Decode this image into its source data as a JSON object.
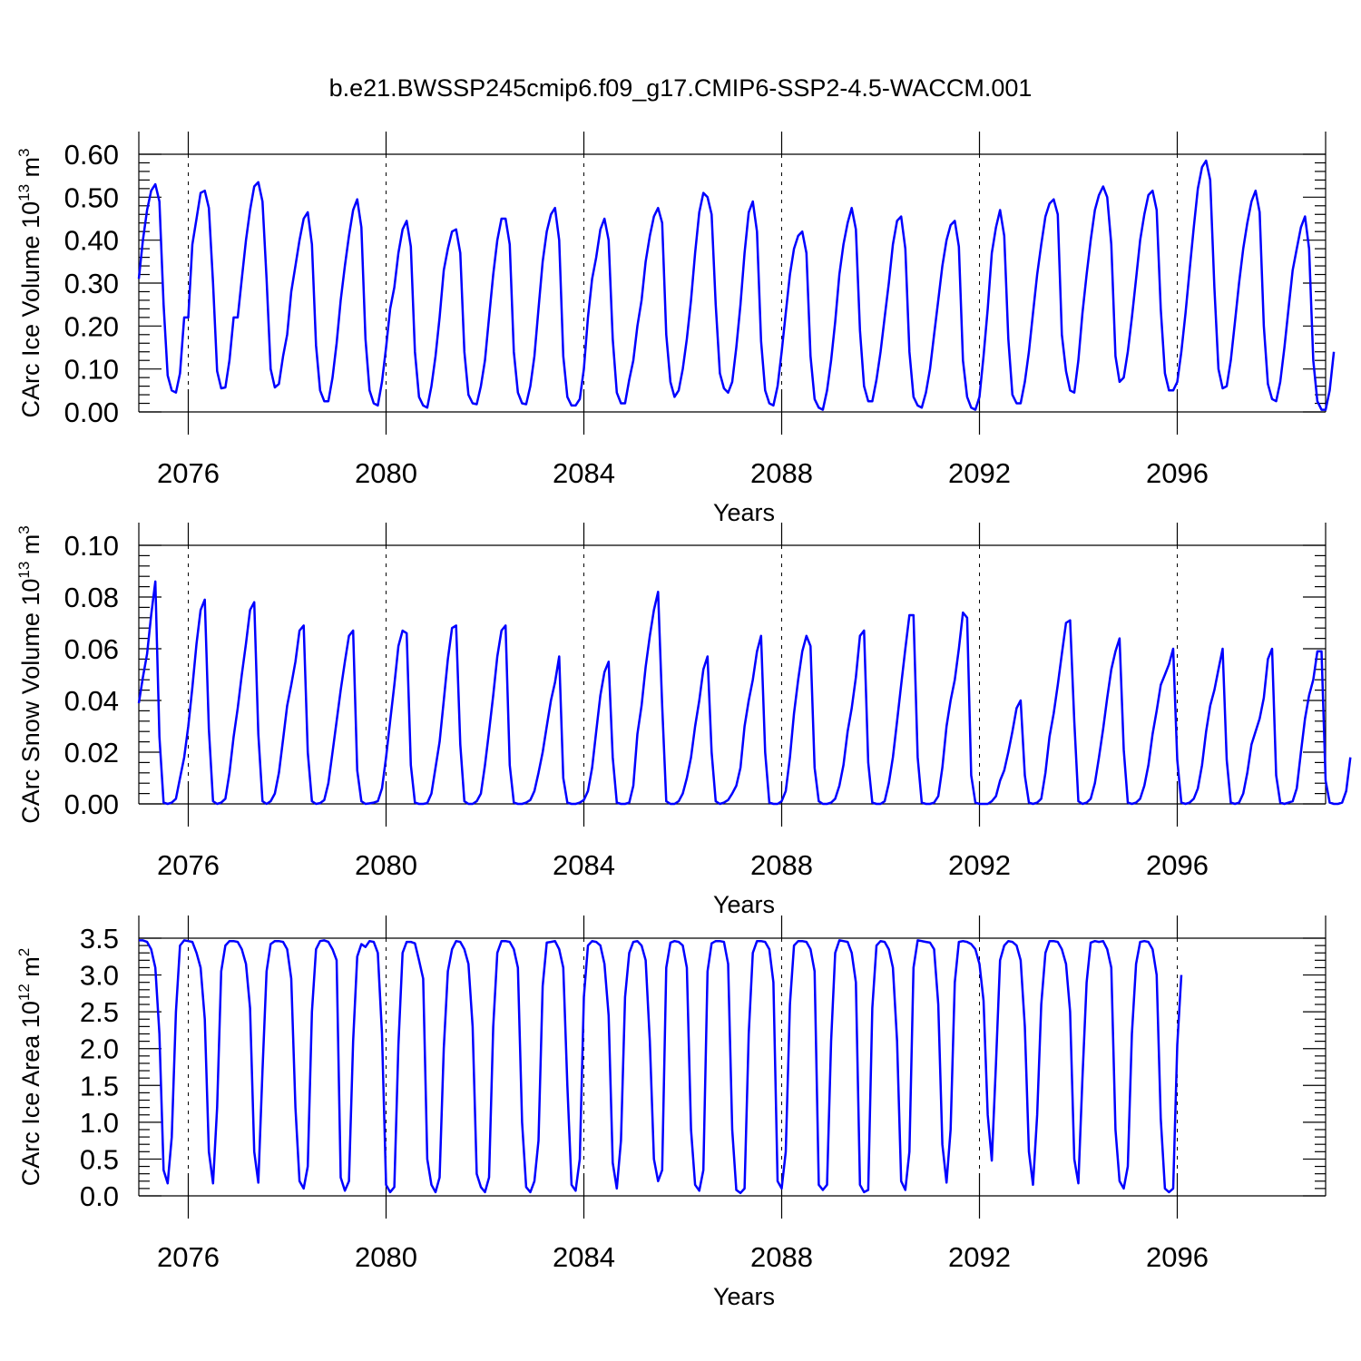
{
  "figure": {
    "title": "b.e21.BWSSP245cmip6.f09_g17.CMIP6-SSP2-4.5-WACCM.001"
  },
  "chart_data": [
    {
      "type": "line",
      "ylabel_main": "CArc Ice Volume 10",
      "ylabel_exp": "13",
      "ylabel_unit": "m",
      "ylabel_unit_exp": "3",
      "xlabel": "Years",
      "xlim": [
        2075.0,
        2099.0
      ],
      "ylim": [
        0.0,
        0.6
      ],
      "yticks": [
        "0.00",
        "0.10",
        "0.20",
        "0.30",
        "0.40",
        "0.50",
        "0.60"
      ],
      "xticks": [
        "2076",
        "2080",
        "2084",
        "2088",
        "2092",
        "2096"
      ],
      "x_start": 2075.0,
      "x_step_months": 1,
      "series": [
        {
          "color": "#0000ff",
          "values": [
            0.31,
            0.4,
            0.47,
            0.515,
            0.53,
            0.49,
            0.25,
            0.085,
            0.05,
            0.045,
            0.09,
            0.22,
            0.22,
            0.39,
            0.45,
            0.51,
            0.515,
            0.475,
            0.3,
            0.095,
            0.055,
            0.057,
            0.12,
            0.22,
            0.22,
            0.31,
            0.4,
            0.47,
            0.525,
            0.535,
            0.49,
            0.31,
            0.1,
            0.057,
            0.065,
            0.13,
            0.18,
            0.28,
            0.34,
            0.4,
            0.45,
            0.465,
            0.39,
            0.155,
            0.05,
            0.025,
            0.025,
            0.08,
            0.16,
            0.26,
            0.34,
            0.41,
            0.47,
            0.495,
            0.43,
            0.17,
            0.05,
            0.02,
            0.015,
            0.07,
            0.15,
            0.24,
            0.29,
            0.37,
            0.425,
            0.445,
            0.385,
            0.14,
            0.035,
            0.015,
            0.01,
            0.06,
            0.13,
            0.22,
            0.33,
            0.38,
            0.42,
            0.425,
            0.37,
            0.14,
            0.04,
            0.02,
            0.018,
            0.06,
            0.12,
            0.22,
            0.32,
            0.4,
            0.45,
            0.45,
            0.39,
            0.14,
            0.045,
            0.02,
            0.018,
            0.06,
            0.13,
            0.24,
            0.35,
            0.42,
            0.46,
            0.475,
            0.4,
            0.13,
            0.035,
            0.015,
            0.015,
            0.03,
            0.1,
            0.22,
            0.31,
            0.36,
            0.425,
            0.45,
            0.4,
            0.17,
            0.045,
            0.02,
            0.02,
            0.075,
            0.12,
            0.2,
            0.26,
            0.35,
            0.41,
            0.455,
            0.475,
            0.44,
            0.18,
            0.07,
            0.035,
            0.05,
            0.1,
            0.17,
            0.26,
            0.37,
            0.465,
            0.51,
            0.5,
            0.46,
            0.25,
            0.09,
            0.055,
            0.045,
            0.07,
            0.15,
            0.25,
            0.37,
            0.465,
            0.49,
            0.42,
            0.165,
            0.05,
            0.02,
            0.015,
            0.06,
            0.14,
            0.23,
            0.32,
            0.38,
            0.41,
            0.42,
            0.37,
            0.13,
            0.03,
            0.01,
            0.005,
            0.05,
            0.12,
            0.21,
            0.32,
            0.39,
            0.44,
            0.475,
            0.425,
            0.19,
            0.06,
            0.025,
            0.025,
            0.075,
            0.14,
            0.22,
            0.3,
            0.39,
            0.445,
            0.455,
            0.38,
            0.14,
            0.035,
            0.015,
            0.01,
            0.045,
            0.1,
            0.18,
            0.26,
            0.34,
            0.4,
            0.435,
            0.445,
            0.385,
            0.12,
            0.035,
            0.01,
            0.005,
            0.035,
            0.13,
            0.24,
            0.37,
            0.43,
            0.47,
            0.41,
            0.17,
            0.04,
            0.02,
            0.02,
            0.07,
            0.14,
            0.23,
            0.32,
            0.39,
            0.455,
            0.485,
            0.495,
            0.46,
            0.18,
            0.095,
            0.05,
            0.045,
            0.12,
            0.23,
            0.32,
            0.4,
            0.47,
            0.505,
            0.525,
            0.5,
            0.39,
            0.13,
            0.07,
            0.08,
            0.14,
            0.22,
            0.31,
            0.4,
            0.46,
            0.505,
            0.515,
            0.47,
            0.24,
            0.09,
            0.05,
            0.05,
            0.07,
            0.14,
            0.23,
            0.33,
            0.43,
            0.52,
            0.57,
            0.585,
            0.54,
            0.29,
            0.1,
            0.055,
            0.06,
            0.12,
            0.21,
            0.3,
            0.38,
            0.44,
            0.49,
            0.515,
            0.465,
            0.2,
            0.065,
            0.03,
            0.025,
            0.07,
            0.15,
            0.24,
            0.33,
            0.38,
            0.43,
            0.455,
            0.38,
            0.12,
            0.025,
            0.005,
            0.005,
            0.05,
            0.14
          ]
        }
      ]
    },
    {
      "type": "line",
      "ylabel_main": "CArc Snow Volume 10",
      "ylabel_exp": "13",
      "ylabel_unit": "m",
      "ylabel_unit_exp": "3",
      "xlabel": "Years",
      "xlim": [
        2075.0,
        2099.0
      ],
      "ylim": [
        0.0,
        0.1
      ],
      "yticks": [
        "0.00",
        "0.02",
        "0.04",
        "0.06",
        "0.08",
        "0.10"
      ],
      "xticks": [
        "2076",
        "2080",
        "2084",
        "2088",
        "2092",
        "2096"
      ],
      "x_start": 2075.0,
      "x_step_months": 1,
      "series": [
        {
          "color": "#0000ff",
          "values": [
            0.039,
            0.049,
            0.058,
            0.073,
            0.086,
            0.026,
            0.0005,
            0.0,
            0.0005,
            0.002,
            0.01,
            0.018,
            0.03,
            0.045,
            0.062,
            0.075,
            0.079,
            0.029,
            0.001,
            0.0,
            0.0005,
            0.002,
            0.012,
            0.026,
            0.037,
            0.05,
            0.062,
            0.075,
            0.078,
            0.027,
            0.001,
            0.0,
            0.001,
            0.004,
            0.012,
            0.025,
            0.038,
            0.046,
            0.055,
            0.067,
            0.069,
            0.02,
            0.001,
            0.0,
            0.0003,
            0.0015,
            0.008,
            0.02,
            0.032,
            0.044,
            0.055,
            0.065,
            0.067,
            0.013,
            0.001,
            0.0,
            0.0002,
            0.0005,
            0.001,
            0.006,
            0.018,
            0.032,
            0.046,
            0.061,
            0.067,
            0.066,
            0.015,
            0.0005,
            0.0,
            0.0,
            0.0003,
            0.004,
            0.014,
            0.024,
            0.04,
            0.056,
            0.068,
            0.069,
            0.023,
            0.001,
            0.0,
            0.0,
            0.001,
            0.004,
            0.015,
            0.028,
            0.042,
            0.057,
            0.067,
            0.069,
            0.015,
            0.0005,
            0.0,
            0.0,
            0.0005,
            0.0015,
            0.005,
            0.012,
            0.02,
            0.03,
            0.04,
            0.047,
            0.057,
            0.01,
            0.0005,
            0.0,
            0.0,
            0.0005,
            0.0015,
            0.005,
            0.014,
            0.028,
            0.042,
            0.051,
            0.055,
            0.018,
            0.0005,
            0.0,
            0.0,
            0.0005,
            0.007,
            0.027,
            0.038,
            0.053,
            0.065,
            0.075,
            0.082,
            0.038,
            0.001,
            0.0,
            0.0,
            0.001,
            0.004,
            0.01,
            0.018,
            0.03,
            0.04,
            0.052,
            0.057,
            0.02,
            0.001,
            0.0,
            0.0005,
            0.0015,
            0.004,
            0.007,
            0.014,
            0.03,
            0.04,
            0.048,
            0.059,
            0.065,
            0.02,
            0.0005,
            0.0,
            0.0,
            0.001,
            0.005,
            0.018,
            0.035,
            0.048,
            0.059,
            0.065,
            0.061,
            0.014,
            0.001,
            0.0,
            0.0,
            0.0005,
            0.002,
            0.007,
            0.015,
            0.028,
            0.037,
            0.049,
            0.065,
            0.067,
            0.016,
            0.0005,
            0.0,
            0.0,
            0.001,
            0.008,
            0.018,
            0.032,
            0.046,
            0.06,
            0.073,
            0.073,
            0.018,
            0.0005,
            0.0,
            0.0,
            0.0005,
            0.003,
            0.014,
            0.03,
            0.04,
            0.048,
            0.06,
            0.074,
            0.072,
            0.011,
            0.0005,
            0.0,
            0.0,
            0.0,
            0.001,
            0.003,
            0.009,
            0.013,
            0.02,
            0.028,
            0.037,
            0.04,
            0.011,
            0.0005,
            0.0,
            0.0005,
            0.002,
            0.012,
            0.026,
            0.035,
            0.046,
            0.058,
            0.07,
            0.071,
            0.032,
            0.001,
            0.0,
            0.0005,
            0.002,
            0.008,
            0.018,
            0.029,
            0.041,
            0.052,
            0.059,
            0.064,
            0.021,
            0.0005,
            0.0,
            0.0005,
            0.002,
            0.007,
            0.015,
            0.027,
            0.036,
            0.046,
            0.05,
            0.054,
            0.06,
            0.017,
            0.0005,
            0.0,
            0.0005,
            0.002,
            0.006,
            0.015,
            0.028,
            0.038,
            0.044,
            0.052,
            0.06,
            0.017,
            0.0005,
            0.0,
            0.0005,
            0.004,
            0.012,
            0.023,
            0.028,
            0.033,
            0.041,
            0.056,
            0.06,
            0.011,
            0.0005,
            0.0,
            0.0005,
            0.001,
            0.006,
            0.02,
            0.033,
            0.042,
            0.048,
            0.059,
            0.059,
            0.009,
            0.0005,
            0.0,
            0.0,
            0.0005,
            0.005,
            0.018
          ]
        }
      ]
    },
    {
      "type": "line",
      "ylabel_main": "CArc Ice Area 10",
      "ylabel_exp": "12",
      "ylabel_unit": "m",
      "ylabel_unit_exp": "2",
      "xlabel": "Years",
      "xlim": [
        2075.0,
        2099.0
      ],
      "ylim": [
        0.0,
        3.5
      ],
      "yticks": [
        "0.0",
        "0.5",
        "1.0",
        "1.5",
        "2.0",
        "2.5",
        "3.0",
        "3.5"
      ],
      "xticks": [
        "2076",
        "2080",
        "2084",
        "2088",
        "2092",
        "2096"
      ],
      "x_start": 2075.0,
      "x_step_months": 1,
      "series": [
        {
          "color": "#0000ff",
          "values": [
            3.47,
            3.47,
            3.45,
            3.35,
            3.1,
            2.2,
            0.35,
            0.17,
            0.8,
            2.5,
            3.4,
            3.47,
            3.46,
            3.45,
            3.3,
            3.1,
            2.4,
            0.6,
            0.17,
            1.2,
            3.05,
            3.4,
            3.46,
            3.46,
            3.45,
            3.35,
            3.15,
            2.55,
            0.6,
            0.18,
            1.7,
            3.05,
            3.42,
            3.46,
            3.46,
            3.45,
            3.35,
            2.95,
            1.2,
            0.2,
            0.1,
            0.4,
            2.5,
            3.35,
            3.46,
            3.47,
            3.45,
            3.35,
            3.2,
            0.25,
            0.07,
            0.2,
            2.1,
            3.25,
            3.42,
            3.38,
            3.46,
            3.45,
            3.3,
            2.2,
            0.15,
            0.05,
            0.12,
            2.05,
            3.3,
            3.45,
            3.45,
            3.43,
            3.2,
            2.95,
            0.5,
            0.15,
            0.05,
            0.25,
            2.0,
            3.05,
            3.35,
            3.46,
            3.45,
            3.35,
            3.15,
            2.3,
            0.3,
            0.12,
            0.05,
            0.25,
            2.3,
            3.3,
            3.46,
            3.46,
            3.45,
            3.35,
            3.1,
            1.0,
            0.12,
            0.05,
            0.2,
            0.75,
            2.85,
            3.44,
            3.45,
            3.46,
            3.35,
            3.1,
            1.5,
            0.15,
            0.07,
            0.5,
            2.7,
            3.4,
            3.46,
            3.45,
            3.4,
            3.15,
            2.45,
            0.45,
            0.1,
            0.75,
            2.7,
            3.3,
            3.45,
            3.46,
            3.4,
            3.2,
            2.1,
            0.5,
            0.2,
            0.35,
            3.1,
            3.44,
            3.46,
            3.45,
            3.4,
            3.1,
            0.9,
            0.15,
            0.07,
            0.35,
            3.05,
            3.43,
            3.46,
            3.46,
            3.45,
            3.15,
            0.9,
            0.08,
            0.04,
            0.1,
            2.2,
            3.3,
            3.46,
            3.46,
            3.45,
            3.35,
            2.9,
            0.2,
            0.1,
            0.6,
            2.6,
            3.4,
            3.46,
            3.46,
            3.45,
            3.35,
            3.05,
            0.15,
            0.08,
            0.15,
            2.1,
            3.3,
            3.47,
            3.46,
            3.45,
            3.3,
            2.9,
            0.15,
            0.05,
            0.08,
            2.55,
            3.4,
            3.46,
            3.45,
            3.35,
            3.1,
            2.1,
            0.2,
            0.08,
            0.6,
            3.1,
            3.47,
            3.46,
            3.45,
            3.44,
            3.35,
            2.6,
            0.7,
            0.18,
            0.9,
            2.9,
            3.45,
            3.46,
            3.45,
            3.42,
            3.35,
            3.15,
            2.65,
            1.1,
            0.48,
            1.8,
            3.2,
            3.4,
            3.46,
            3.45,
            3.4,
            3.2,
            2.3,
            0.6,
            0.15,
            1.1,
            2.6,
            3.3,
            3.46,
            3.46,
            3.45,
            3.35,
            3.15,
            2.5,
            0.5,
            0.17,
            1.6,
            2.9,
            3.44,
            3.46,
            3.45,
            3.46,
            3.35,
            3.1,
            0.9,
            0.2,
            0.1,
            0.4,
            2.2,
            3.15,
            3.45,
            3.46,
            3.45,
            3.35,
            3.0,
            1.05,
            0.1,
            0.05,
            0.1,
            2.05,
            3.0
          ]
        }
      ]
    }
  ]
}
